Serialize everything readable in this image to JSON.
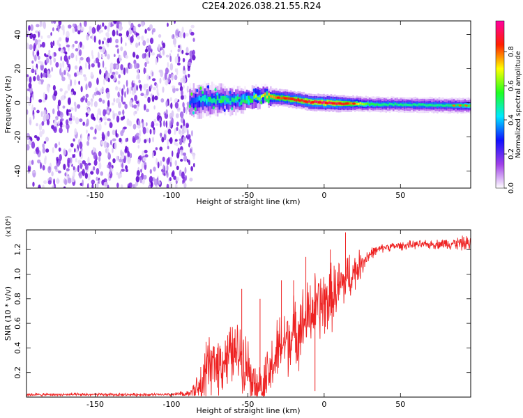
{
  "page": {
    "title": "C2E4.2026.038.21.55.R24"
  },
  "chart_data": [
    {
      "type": "heatmap",
      "title": "C2E4.2026.038.21.55.R24",
      "xlabel": "Height of straight line (km)",
      "ylabel": "Frequency (Hz)",
      "xlim": [
        -195,
        96
      ],
      "ylim": [
        -50,
        48
      ],
      "x_ticks": [
        "-150",
        "-100",
        "-50",
        "0",
        "50"
      ],
      "x_tick_values": [
        -150,
        -100,
        -50,
        0,
        50
      ],
      "y_ticks": [
        "40",
        "20",
        "0",
        "-20",
        "-40"
      ],
      "y_tick_values": [
        40,
        20,
        0,
        -20,
        -40
      ],
      "grid": false,
      "noise_region_x": [
        -195,
        -85
      ],
      "signal_track": {
        "x": [
          -88,
          -80,
          -70,
          -60,
          -50,
          -40,
          -30,
          -20,
          -10,
          0,
          10,
          20,
          30,
          40,
          50,
          60,
          70,
          80,
          90,
          96
        ],
        "frequency": [
          1,
          2,
          1.5,
          1,
          2,
          4,
          3,
          2,
          0.5,
          0,
          -0.5,
          -0.5,
          -0.8,
          -1,
          -1,
          -1.2,
          -1.3,
          -1.5,
          -1.6,
          -1.6
        ],
        "amplitude": [
          0.3,
          0.45,
          0.5,
          0.5,
          0.55,
          0.7,
          0.8,
          0.85,
          0.9,
          0.95,
          0.9,
          0.75,
          0.55,
          0.5,
          0.5,
          0.5,
          0.5,
          0.5,
          0.55,
          0.6
        ],
        "width_hz": [
          10,
          10,
          9,
          8,
          7,
          6,
          5,
          5,
          5,
          5,
          5,
          4.5,
          4.5,
          4.5,
          4.5,
          4.5,
          4.5,
          4.5,
          4.5,
          4.5
        ]
      },
      "colorbar": {
        "label": "Normalized spectral amplitude",
        "ticks": [
          "0.0",
          "0.2",
          "0.4",
          "0.6",
          "0.8"
        ],
        "tick_values": [
          0,
          0.2,
          0.4,
          0.6,
          0.8
        ],
        "range": [
          0,
          0.98
        ],
        "colors": [
          "#ffffff",
          "#a040e8",
          "#1010ff",
          "#00e8ff",
          "#20ff20",
          "#ffff00",
          "#ff2000",
          "#ff00a0"
        ]
      }
    },
    {
      "type": "line",
      "xlabel": "Height of straight line (km)",
      "ylabel": "SNR (10 * v/v)",
      "y_multiplier": "(x10⁴)",
      "xlim": [
        -195,
        96
      ],
      "ylim": [
        0,
        1.36
      ],
      "x_ticks": [
        "-150",
        "-100",
        "-50",
        "0",
        "50"
      ],
      "x_tick_values": [
        -150,
        -100,
        -50,
        0,
        50
      ],
      "y_ticks": [
        "0.2",
        "0.4",
        "0.6",
        "0.8",
        "1.0",
        "1.2"
      ],
      "y_tick_values": [
        0.2,
        0.4,
        0.6,
        0.8,
        1.0,
        1.2
      ],
      "grid": false,
      "series": [
        {
          "color": "#ee2222",
          "x": [
            -195,
            -150,
            -100,
            -88,
            -82,
            -78,
            -72,
            -66,
            -60,
            -55,
            -52,
            -48,
            -44,
            -40,
            -36,
            -32,
            -28,
            -24,
            -20,
            -16,
            -12,
            -8,
            -4,
            0,
            4,
            8,
            12,
            16,
            20,
            24,
            28,
            32,
            36,
            40,
            50,
            60,
            70,
            80,
            90,
            96
          ],
          "values": [
            0.02,
            0.02,
            0.02,
            0.03,
            0.08,
            0.2,
            0.28,
            0.3,
            0.35,
            0.36,
            0.3,
            0.22,
            0.12,
            0.08,
            0.18,
            0.32,
            0.42,
            0.48,
            0.5,
            0.58,
            0.62,
            0.7,
            0.74,
            0.76,
            0.8,
            0.86,
            0.92,
            0.98,
            1.02,
            1.08,
            1.14,
            1.18,
            1.2,
            1.22,
            1.23,
            1.24,
            1.24,
            1.25,
            1.25,
            1.25
          ],
          "noise": [
            0.01,
            0.01,
            0.01,
            0.03,
            0.12,
            0.2,
            0.22,
            0.22,
            0.22,
            0.22,
            0.22,
            0.2,
            0.18,
            0.18,
            0.2,
            0.24,
            0.26,
            0.26,
            0.26,
            0.26,
            0.26,
            0.26,
            0.26,
            0.26,
            0.24,
            0.22,
            0.2,
            0.18,
            0.14,
            0.1,
            0.06,
            0.04,
            0.03,
            0.03,
            0.03,
            0.03,
            0.03,
            0.04,
            0.05,
            0.06
          ],
          "spikes": [
            {
              "x": -54,
              "value": 0.88
            },
            {
              "x": -42,
              "value": 0.8
            },
            {
              "x": -28,
              "value": 0.95
            },
            {
              "x": -20,
              "value": 0.95
            },
            {
              "x": -12,
              "value": 1.14
            },
            {
              "x": -6,
              "value": 0.05
            },
            {
              "x": 4,
              "value": 1.2
            },
            {
              "x": 14,
              "value": 1.34
            }
          ]
        }
      ]
    }
  ]
}
